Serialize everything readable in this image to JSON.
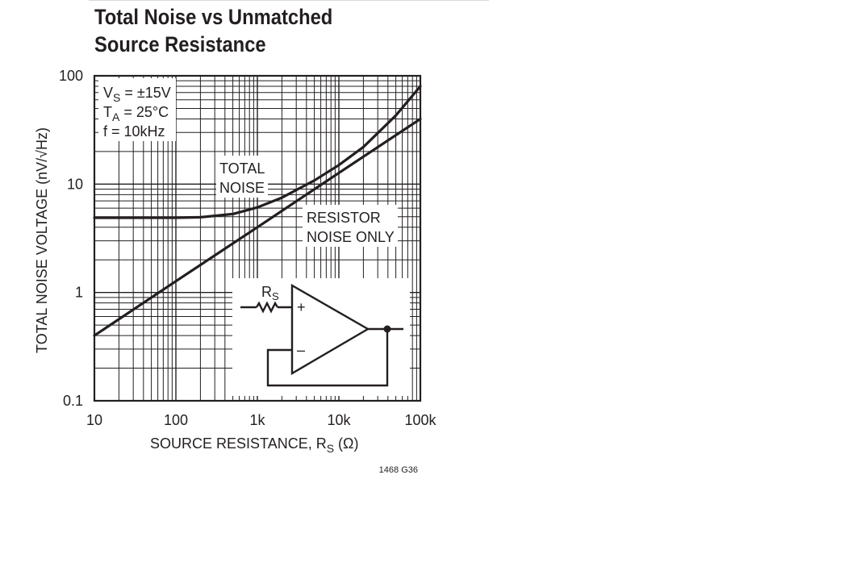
{
  "chart_data": {
    "type": "line",
    "title_line1": "Total Noise vs Unmatched",
    "title_line2": "Source Resistance",
    "xlabel": "SOURCE RESISTANCE, R",
    "xlabel_sub": "S",
    "xlabel_unit": " (Ω)",
    "ylabel": "TOTAL NOISE VOLTAGE (nV/√Hz)",
    "x_scale": "log",
    "y_scale": "log",
    "xlim": [
      10,
      100000
    ],
    "ylim": [
      0.1,
      100
    ],
    "x_ticks": [
      {
        "value": 10,
        "label": "10"
      },
      {
        "value": 100,
        "label": "100"
      },
      {
        "value": 1000,
        "label": "1k"
      },
      {
        "value": 10000,
        "label": "10k"
      },
      {
        "value": 100000,
        "label": "100k"
      }
    ],
    "y_ticks": [
      {
        "value": 0.1,
        "label": "0.1"
      },
      {
        "value": 1,
        "label": "1"
      },
      {
        "value": 10,
        "label": "10"
      },
      {
        "value": 100,
        "label": "100"
      }
    ],
    "grid": true,
    "conditions": [
      {
        "main": "V",
        "sub": "S",
        "rest": " = ±15V"
      },
      {
        "main": "T",
        "sub": "A",
        "rest": " = 25°C"
      },
      {
        "main": "f = 10kHz",
        "sub": "",
        "rest": ""
      }
    ],
    "series": [
      {
        "name": "TOTAL NOISE",
        "label_lines": [
          "TOTAL",
          "NOISE"
        ],
        "x": [
          10,
          100,
          200,
          500,
          1000,
          2000,
          5000,
          10000,
          20000,
          50000,
          100000
        ],
        "y": [
          4.9,
          4.9,
          4.95,
          5.3,
          6.1,
          7.5,
          10.8,
          15,
          22,
          43,
          80
        ]
      },
      {
        "name": "RESISTOR NOISE ONLY",
        "label_lines": [
          "RESISTOR",
          "NOISE ONLY"
        ],
        "x": [
          10,
          100,
          1000,
          10000,
          100000
        ],
        "y": [
          0.4,
          1.27,
          4.0,
          12.7,
          40
        ]
      }
    ],
    "inset": {
      "resistor_label": "R",
      "resistor_label_sub": "S",
      "plus_label": "+",
      "minus_label": "–"
    },
    "figure_code": "1468 G36"
  }
}
